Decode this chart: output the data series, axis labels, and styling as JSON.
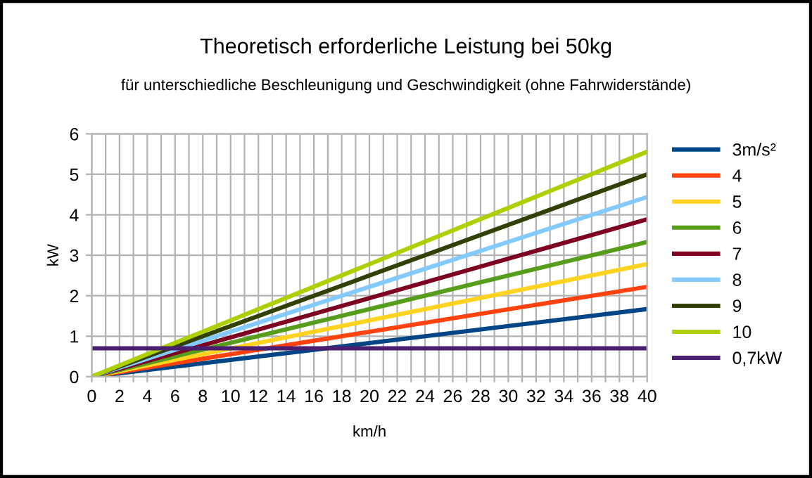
{
  "chart_data": {
    "type": "line",
    "title": "Theoretisch erforderliche Leistung bei 50kg",
    "subtitle": "für unterschiedliche Beschleunigung und Geschwindigkeit (ohne Fahrwiderstände)",
    "xlabel": "km/h",
    "ylabel": "kW",
    "x": [
      0,
      20,
      40
    ],
    "series": [
      {
        "name": "3m/s²",
        "color": "#004586",
        "values": [
          0,
          0.83,
          1.67
        ]
      },
      {
        "name": "4",
        "color": "#ff420e",
        "values": [
          0,
          1.11,
          2.22
        ]
      },
      {
        "name": "5",
        "color": "#ffd320",
        "values": [
          0,
          1.39,
          2.78
        ]
      },
      {
        "name": "6",
        "color": "#579d1c",
        "values": [
          0,
          1.67,
          3.33
        ]
      },
      {
        "name": "7",
        "color": "#7e0021",
        "values": [
          0,
          1.94,
          3.89
        ]
      },
      {
        "name": "8",
        "color": "#83caff",
        "values": [
          0,
          2.22,
          4.44
        ]
      },
      {
        "name": "9",
        "color": "#314004",
        "values": [
          0,
          2.5,
          5.0
        ]
      },
      {
        "name": "10",
        "color": "#aecf00",
        "values": [
          0,
          2.78,
          5.56
        ]
      },
      {
        "name": "0,7kW",
        "color": "#4b1f6f",
        "values": [
          0.7,
          0.7,
          0.7
        ]
      }
    ],
    "xlim": [
      0,
      40
    ],
    "ylim": [
      0,
      6
    ],
    "xticks": [
      0,
      {
        "value": 1,
        "label": null
      },
      2,
      {
        "value": 3,
        "label": null
      },
      4,
      {
        "value": 5,
        "label": null
      },
      6,
      {
        "value": 7,
        "label": null
      },
      8,
      {
        "value": 9,
        "label": null
      },
      10,
      {
        "value": 11,
        "label": null
      },
      12,
      {
        "value": 13,
        "label": null
      },
      14,
      {
        "value": 15,
        "label": null
      },
      16,
      {
        "value": 17,
        "label": null
      },
      18,
      {
        "value": 19,
        "label": null
      },
      20,
      {
        "value": 21,
        "label": null
      },
      22,
      {
        "value": 23,
        "label": null
      },
      24,
      {
        "value": 25,
        "label": null
      },
      26,
      {
        "value": 27,
        "label": null
      },
      28,
      {
        "value": 29,
        "label": null
      },
      30,
      {
        "value": 31,
        "label": null
      },
      32,
      {
        "value": 33,
        "label": null
      },
      34,
      {
        "value": 35,
        "label": null
      },
      36,
      {
        "value": 37,
        "label": null
      },
      38,
      {
        "value": 39,
        "label": null
      },
      40
    ],
    "yticks": [
      0,
      1,
      2,
      3,
      4,
      5,
      6
    ],
    "grid": true,
    "legend": "right",
    "marker": "none",
    "line_style": "solid"
  }
}
